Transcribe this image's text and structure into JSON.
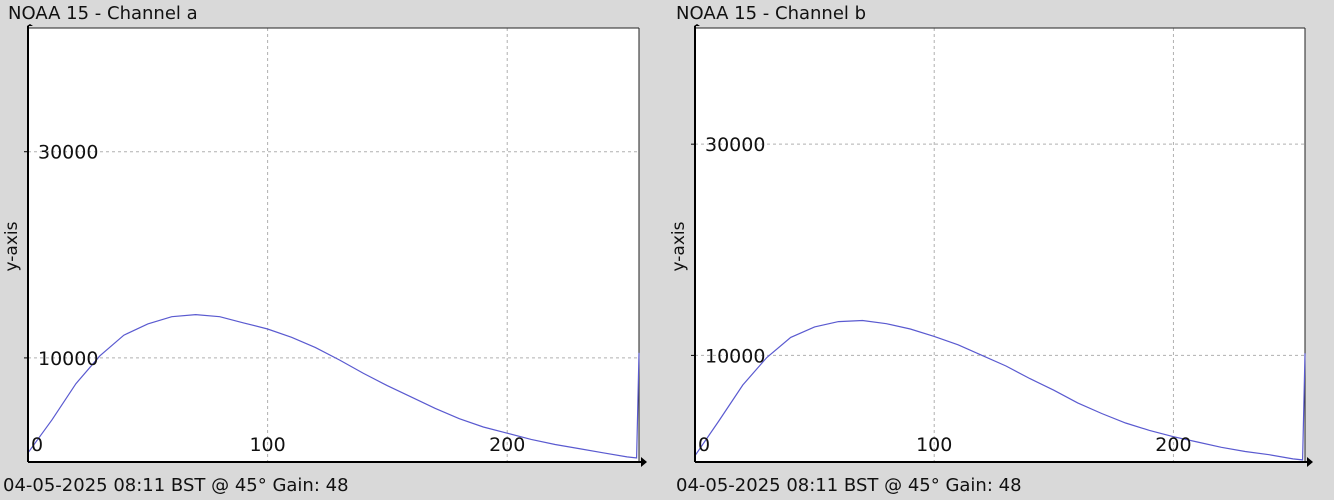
{
  "colors": {
    "background": "#d9d9d9",
    "plot_bg": "#ffffff",
    "line": "#5a5ad0",
    "grid": "#b0b0b0"
  },
  "chart_data": [
    {
      "type": "line",
      "title": "NOAA 15 - Channel a",
      "ylabel": "y-axis",
      "footer": "04-05-2025 08:11 BST @ 45° Gain: 48",
      "x_ticks": [
        "0",
        "100",
        "200"
      ],
      "y_ticks": [
        "10000",
        "30000"
      ],
      "xlim": [
        0,
        255
      ],
      "ylim": [
        0,
        42000
      ],
      "grid": true,
      "series": [
        {
          "x": [
            0,
            10,
            20,
            30,
            40,
            50,
            60,
            70,
            80,
            90,
            100,
            110,
            120,
            130,
            140,
            150,
            160,
            170,
            180,
            190,
            200,
            210,
            220,
            230,
            240,
            250,
            254,
            255
          ],
          "y": [
            800,
            4000,
            7500,
            10200,
            12200,
            13300,
            14000,
            14200,
            14000,
            13400,
            12800,
            12000,
            11000,
            9800,
            8500,
            7300,
            6200,
            5100,
            4100,
            3300,
            2700,
            2100,
            1600,
            1200,
            800,
            400,
            300,
            10500
          ]
        }
      ]
    },
    {
      "type": "line",
      "title": "NOAA 15 - Channel b",
      "ylabel": "y-axis",
      "footer": "04-05-2025 08:11 BST @ 45° Gain: 48",
      "x_ticks": [
        "0",
        "100",
        "200"
      ],
      "y_ticks": [
        "10000",
        "30000"
      ],
      "xlim": [
        0,
        255
      ],
      "ylim": [
        0,
        41000
      ],
      "grid": true,
      "series": [
        {
          "x": [
            0,
            10,
            20,
            30,
            40,
            50,
            60,
            70,
            80,
            90,
            100,
            110,
            120,
            130,
            140,
            150,
            160,
            170,
            180,
            190,
            200,
            210,
            220,
            230,
            240,
            250,
            254,
            255
          ],
          "y": [
            500,
            3800,
            7200,
            9800,
            11700,
            12700,
            13200,
            13300,
            13000,
            12500,
            11800,
            11000,
            10000,
            9000,
            7800,
            6700,
            5500,
            4500,
            3600,
            2900,
            2300,
            1800,
            1300,
            900,
            600,
            200,
            100,
            10200
          ]
        }
      ]
    }
  ]
}
